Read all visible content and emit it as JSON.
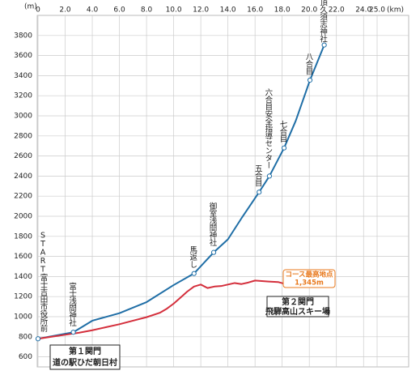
{
  "chart_data": {
    "type": "line",
    "ylabel": "(m)",
    "xlabel": "(km)",
    "xlim": [
      0,
      25
    ],
    "xticks": [
      0,
      {
        "value": 2,
        "label": "2.0"
      },
      {
        "value": 4,
        "label": "4.0"
      },
      {
        "value": 6,
        "label": "6.0"
      },
      {
        "value": 8,
        "label": "8.0"
      },
      {
        "value": 10,
        "label": "10.0"
      },
      {
        "value": 12,
        "label": "12.0"
      },
      {
        "value": 14,
        "label": "14.0"
      },
      {
        "value": 16,
        "label": "16.0"
      },
      {
        "value": 18,
        "label": "18.0"
      },
      {
        "value": 20,
        "label": "20.0"
      },
      {
        "value": 22,
        "label": "22.0"
      },
      {
        "value": 24,
        "label": "24.0"
      },
      {
        "value": 25,
        "label": "25.0"
      }
    ],
    "ylim": [
      500,
      4000
    ],
    "yticks": [
      600,
      800,
      1000,
      1200,
      1400,
      1600,
      1800,
      2000,
      2200,
      2400,
      2600,
      2800,
      3000,
      3200,
      3400,
      3600,
      3800
    ],
    "grid": true,
    "series": [
      {
        "color": "#1f6ea6",
        "x": [
          0,
          2.6,
          4,
          6,
          8,
          10,
          11.5,
          12.95,
          14,
          15,
          16.3,
          17.06,
          18.14,
          19,
          20.05,
          21.1
        ],
        "values": [
          780,
          845,
          960,
          1035,
          1145,
          1315,
          1430,
          1640,
          1770,
          1980,
          2240,
          2400,
          2680,
          2950,
          3355,
          3705
        ]
      },
      {
        "color": "#d42f3c",
        "x": [
          0,
          1,
          2,
          3,
          4,
          5,
          6,
          7,
          8,
          9,
          9.5,
          10,
          10.5,
          11,
          11.5,
          12,
          12.5,
          13,
          13.5,
          14,
          14.5,
          15,
          15.5,
          16,
          16.5,
          17,
          17.7,
          18.1
        ],
        "values": [
          780,
          800,
          820,
          840,
          865,
          895,
          925,
          960,
          995,
          1040,
          1080,
          1130,
          1190,
          1250,
          1300,
          1320,
          1285,
          1300,
          1305,
          1320,
          1335,
          1325,
          1340,
          1360,
          1355,
          1350,
          1345,
          1330
        ]
      }
    ],
    "annotations": [
      {
        "text": "START富士吉田市役所前",
        "x": 0,
        "y": 780
      },
      {
        "text": "富士浅間神社",
        "x": 2.6,
        "y": 845
      },
      {
        "text": "馬返し",
        "x": 11.5,
        "y": 1430
      },
      {
        "text": "御室浅間神社",
        "x": 12.95,
        "y": 1640
      },
      {
        "text": "五合目",
        "x": 16.3,
        "y": 2240
      },
      {
        "text": "六合目安全指導センター",
        "x": 17.06,
        "y": 2400
      },
      {
        "text": "七合目",
        "x": 18.14,
        "y": 2680
      },
      {
        "text": "八合目",
        "x": 20.05,
        "y": 3355
      },
      {
        "text": "GOAL山頂久須志神社",
        "x": 21.1,
        "y": 3705
      }
    ],
    "gates": [
      {
        "title": "第１関門",
        "name": "道の駅ひだ朝日村"
      },
      {
        "title": "第２関門",
        "name": "飛騨高山スキー場"
      }
    ],
    "summit": {
      "title": "コース最高地点",
      "value_label": "1,345m"
    }
  }
}
